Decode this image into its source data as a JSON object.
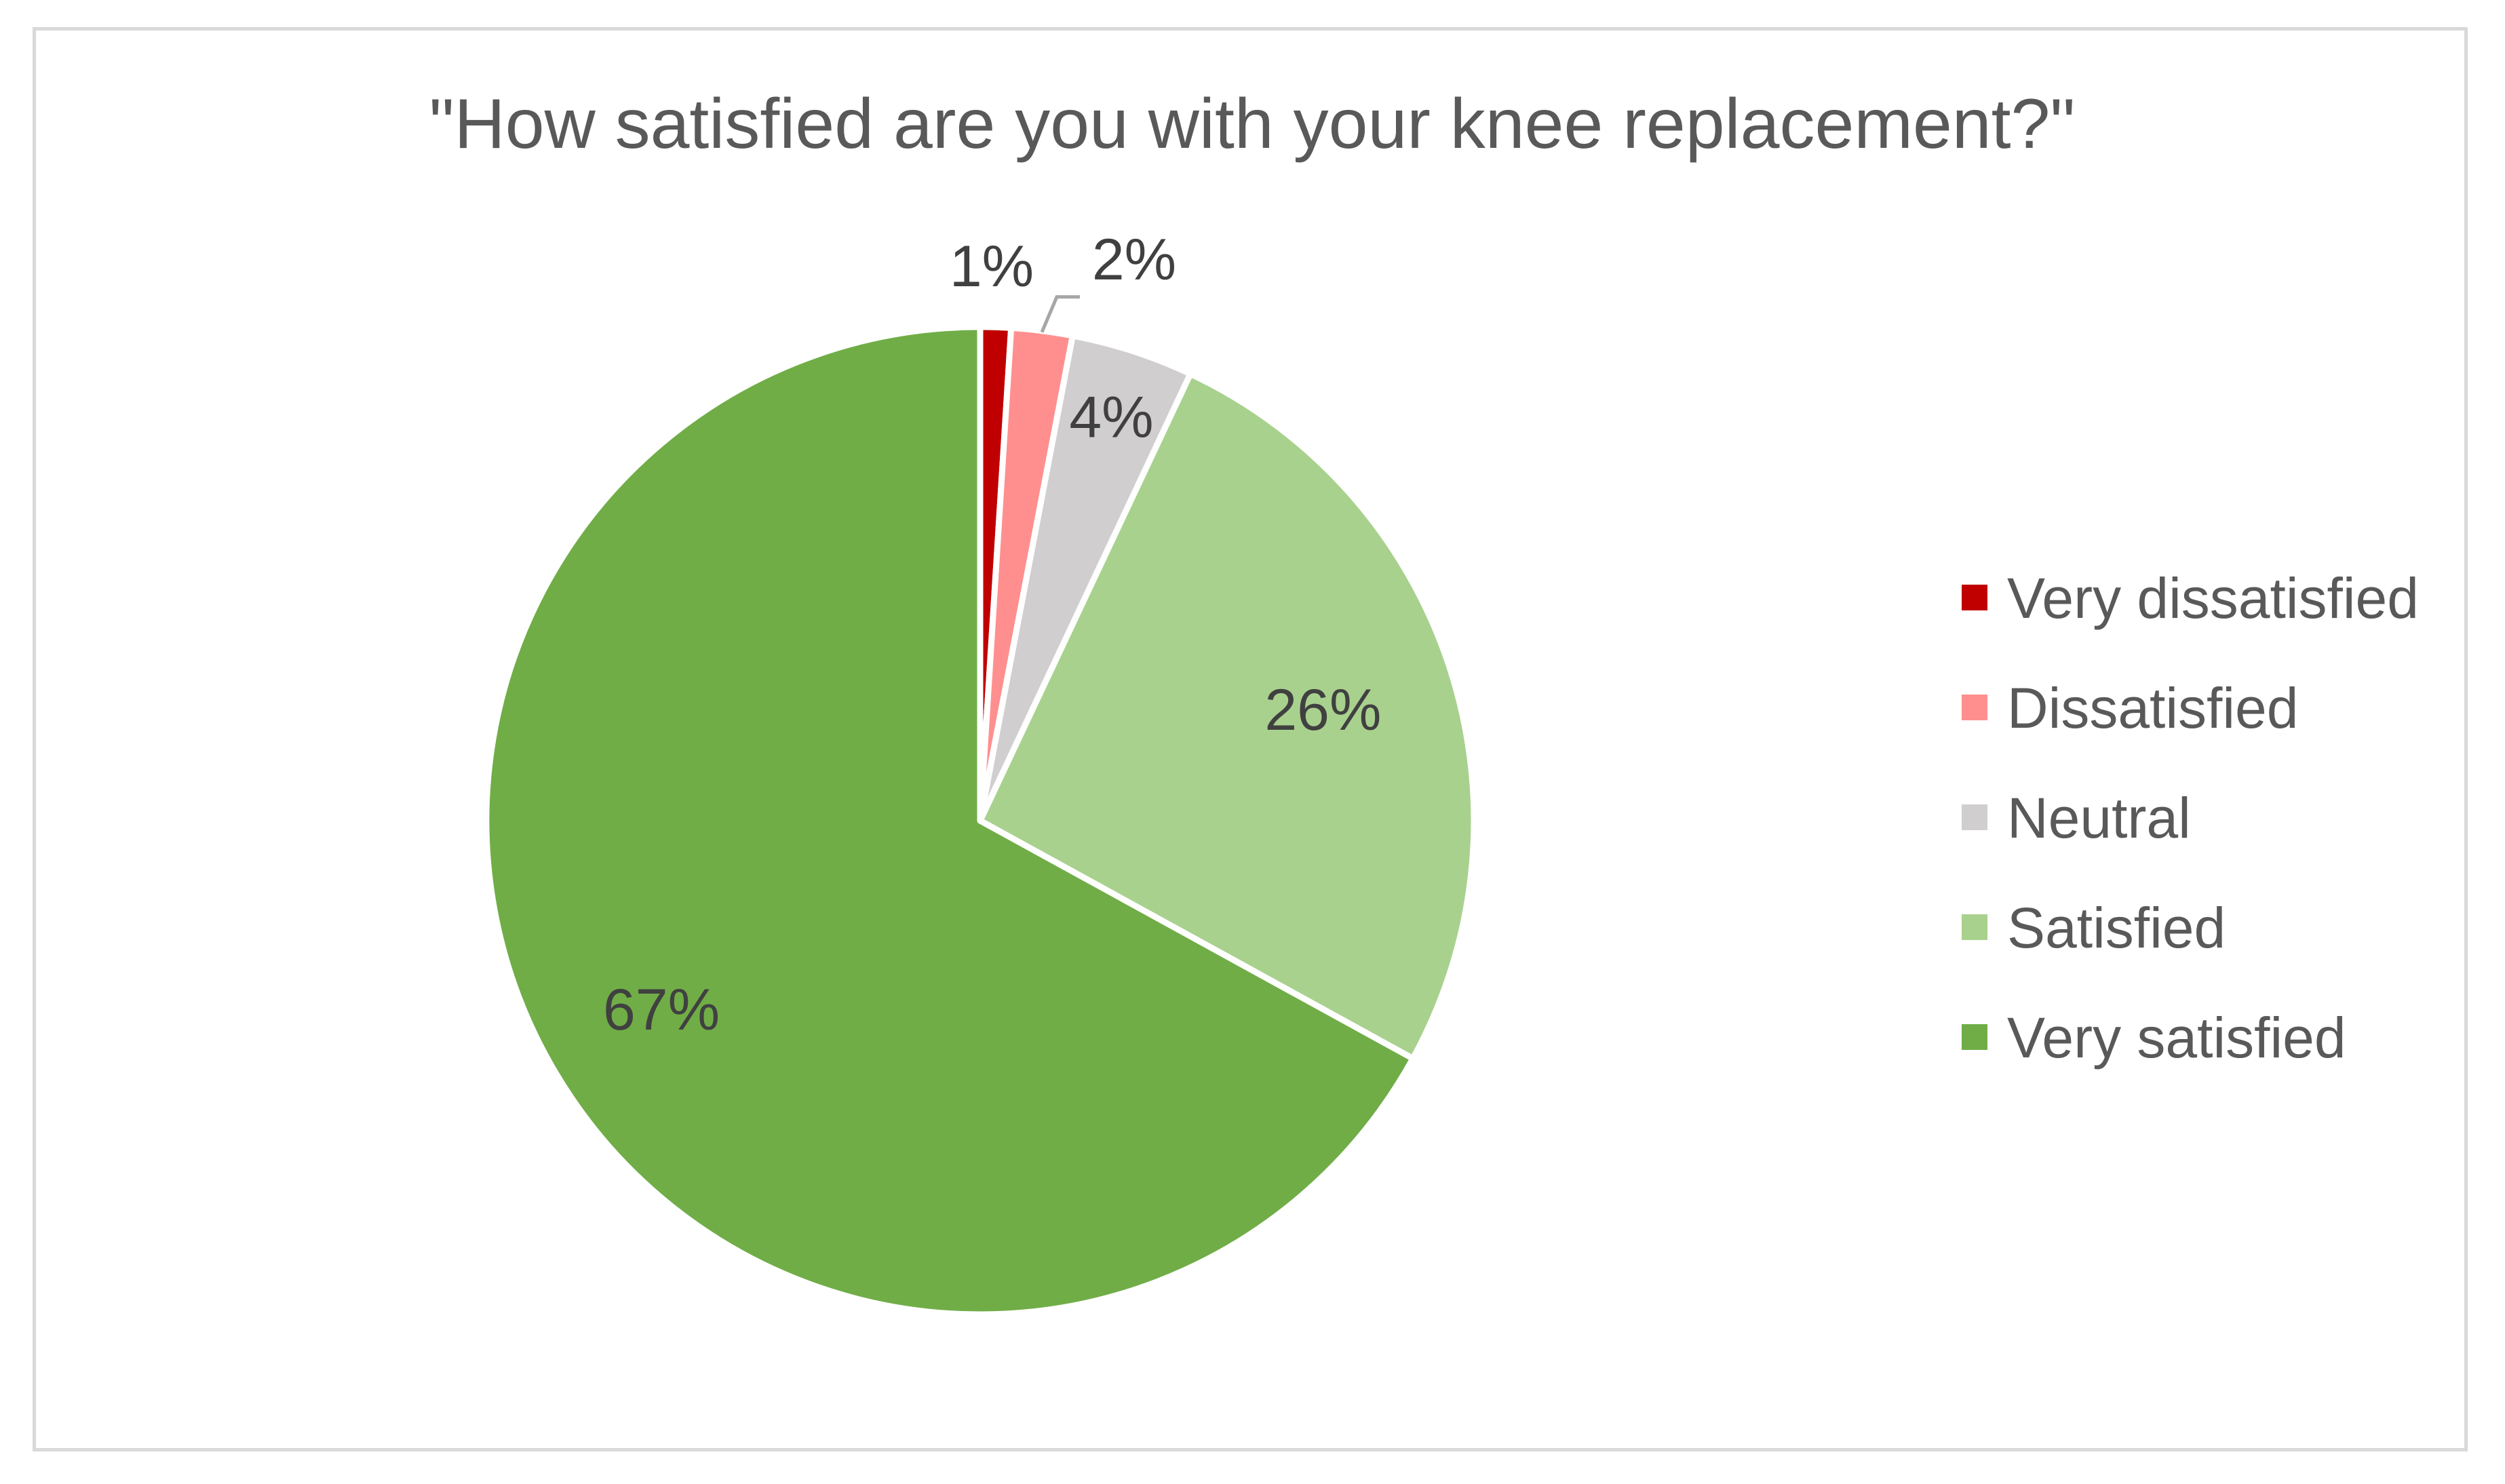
{
  "chart_data": {
    "type": "pie",
    "title": "\"How satisfied are you with your knee replacement?\"",
    "categories": [
      "Very dissatisfied",
      "Dissatisfied",
      "Neutral",
      "Satisfied",
      "Very satisfied"
    ],
    "values": [
      1,
      2,
      4,
      26,
      67
    ],
    "data_labels": [
      "1%",
      "2%",
      "4%",
      "26%",
      "67%"
    ],
    "colors": [
      "#c00000",
      "#ff8f8f",
      "#d0cece",
      "#a9d18e",
      "#70ad47"
    ],
    "legend_position": "right",
    "start_angle": "top, clockwise"
  }
}
